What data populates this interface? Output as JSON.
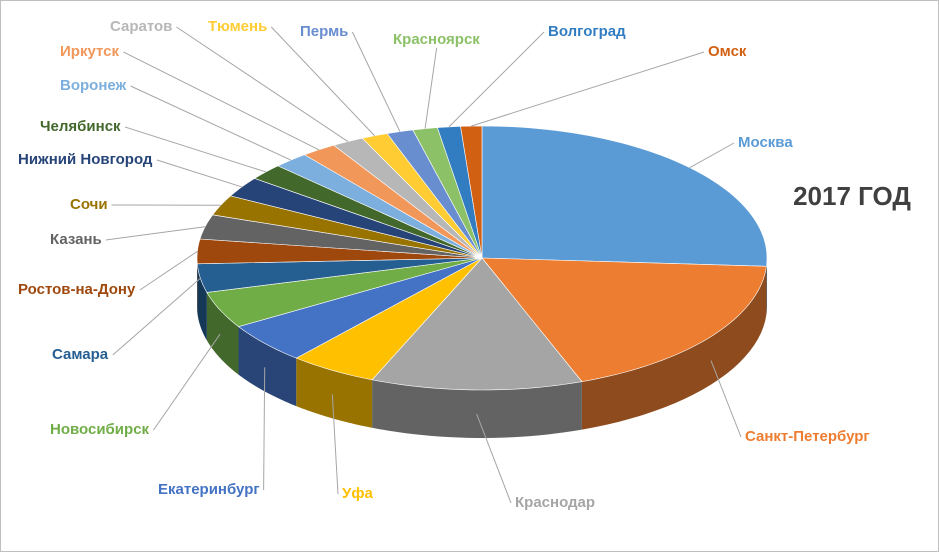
{
  "chart_data": {
    "type": "pie3d",
    "title": "2017 ГОД",
    "categories": [
      "Москва",
      "Санкт-Петербург",
      "Краснодар",
      "Уфа",
      "Екатеринбург",
      "Новосибирск",
      "Самара",
      "Ростов-на-Дону",
      "Казань",
      "Сочи",
      "Нижний Новгород",
      "Челябинск",
      "Воронеж",
      "Иркутск",
      "Саратов",
      "Тюмень",
      "Пермь",
      "Красноярск",
      "Волгоград",
      "Омск"
    ],
    "values": [
      26,
      18.3,
      12,
      5,
      5,
      4.5,
      3.5,
      3,
      3,
      2.5,
      2.5,
      2,
      2,
      2,
      1.8,
      1.5,
      1.5,
      1.4,
      1.3,
      1.2
    ],
    "colors": [
      "#5b9bd5",
      "#ed7d31",
      "#a5a5a5",
      "#ffc000",
      "#4472c4",
      "#70ad47",
      "#255e91",
      "#9e480e",
      "#636363",
      "#997300",
      "#264478",
      "#43682b",
      "#7cafdd",
      "#f1975a",
      "#b7b7b7",
      "#ffcd33",
      "#698ed0",
      "#8cc168",
      "#327dc2",
      "#d26012"
    ]
  }
}
